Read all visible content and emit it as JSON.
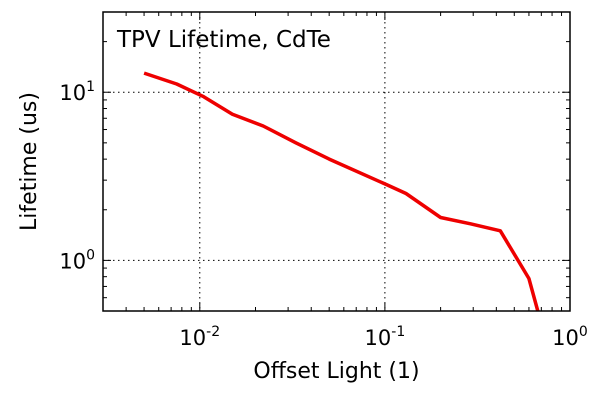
{
  "chart_data": {
    "type": "line",
    "title": "TPV Lifetime, CdTe",
    "xlabel": "Offset Light (1)",
    "ylabel": "Lifetime (us)",
    "xscale": "log",
    "yscale": "log",
    "xlim": [
      0.003,
      1.0
    ],
    "ylim": [
      0.5,
      30
    ],
    "grid": true,
    "x_ticks": [
      {
        "value": 0.01,
        "base": "10",
        "exp": "-2"
      },
      {
        "value": 0.1,
        "base": "10",
        "exp": "-1"
      },
      {
        "value": 1.0,
        "base": "10",
        "exp": "0"
      }
    ],
    "y_ticks": [
      {
        "value": 1,
        "base": "10",
        "exp": "0"
      },
      {
        "value": 10,
        "base": "10",
        "exp": "1"
      }
    ],
    "series": [
      {
        "color": "#ee0000",
        "x": [
          0.005,
          0.0075,
          0.0105,
          0.015,
          0.022,
          0.033,
          0.05,
          0.1,
          0.13,
          0.2,
          0.29,
          0.42,
          0.6,
          0.67
        ],
        "y": [
          13.0,
          11.2,
          9.4,
          7.4,
          6.3,
          5.0,
          4.0,
          2.85,
          2.5,
          1.8,
          1.65,
          1.5,
          0.78,
          0.5
        ]
      }
    ]
  }
}
